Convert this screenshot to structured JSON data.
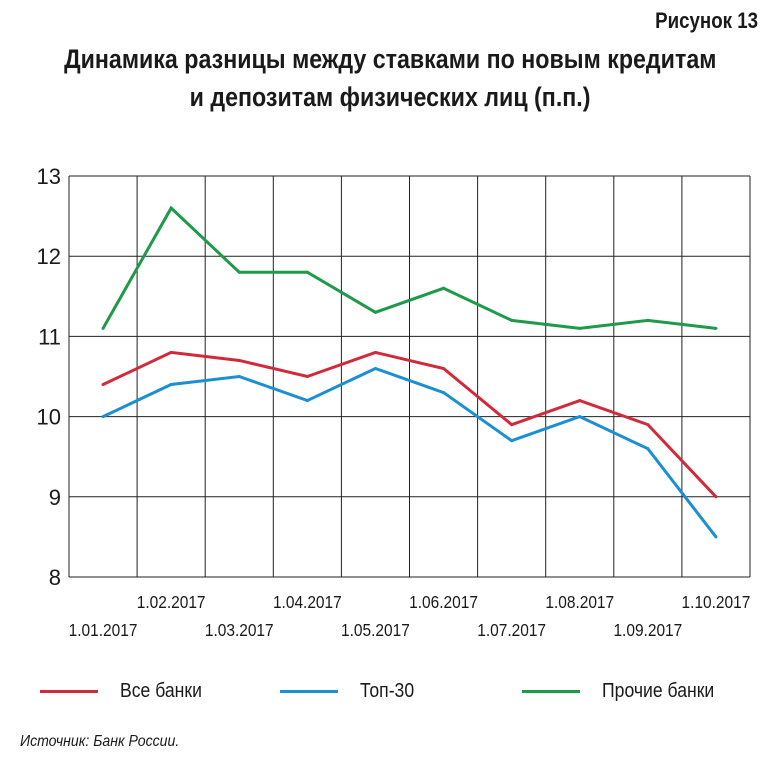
{
  "figure_label": "Рисунок 13",
  "title_line1": "Динамика разницы между ставками по новым кредитам",
  "title_line2": "и депозитам физических лиц (п.п.)",
  "source": "Источник: Банк России.",
  "chart_data": {
    "type": "line",
    "x": [
      "1.01.2017",
      "1.02.2017",
      "1.03.2017",
      "1.04.2017",
      "1.05.2017",
      "1.06.2017",
      "1.07.2017",
      "1.08.2017",
      "1.09.2017",
      "1.10.2017"
    ],
    "ylim": [
      8,
      13
    ],
    "yticks": [
      8,
      9,
      10,
      11,
      12,
      13
    ],
    "grid": true,
    "legend_position": "bottom",
    "series": [
      {
        "name": "Все банки",
        "color": "#d12a3a",
        "values": [
          10.4,
          10.8,
          10.7,
          10.5,
          10.8,
          10.6,
          9.9,
          10.2,
          9.9,
          9.0
        ]
      },
      {
        "name": "Топ-30",
        "color": "#1a8fd4",
        "values": [
          10.0,
          10.4,
          10.5,
          10.2,
          10.6,
          10.3,
          9.7,
          10.0,
          9.6,
          8.5
        ]
      },
      {
        "name": "Прочие банки",
        "color": "#1e9a4a",
        "values": [
          11.1,
          12.6,
          11.8,
          11.8,
          11.3,
          11.6,
          11.2,
          11.1,
          11.2,
          11.1
        ]
      }
    ]
  }
}
